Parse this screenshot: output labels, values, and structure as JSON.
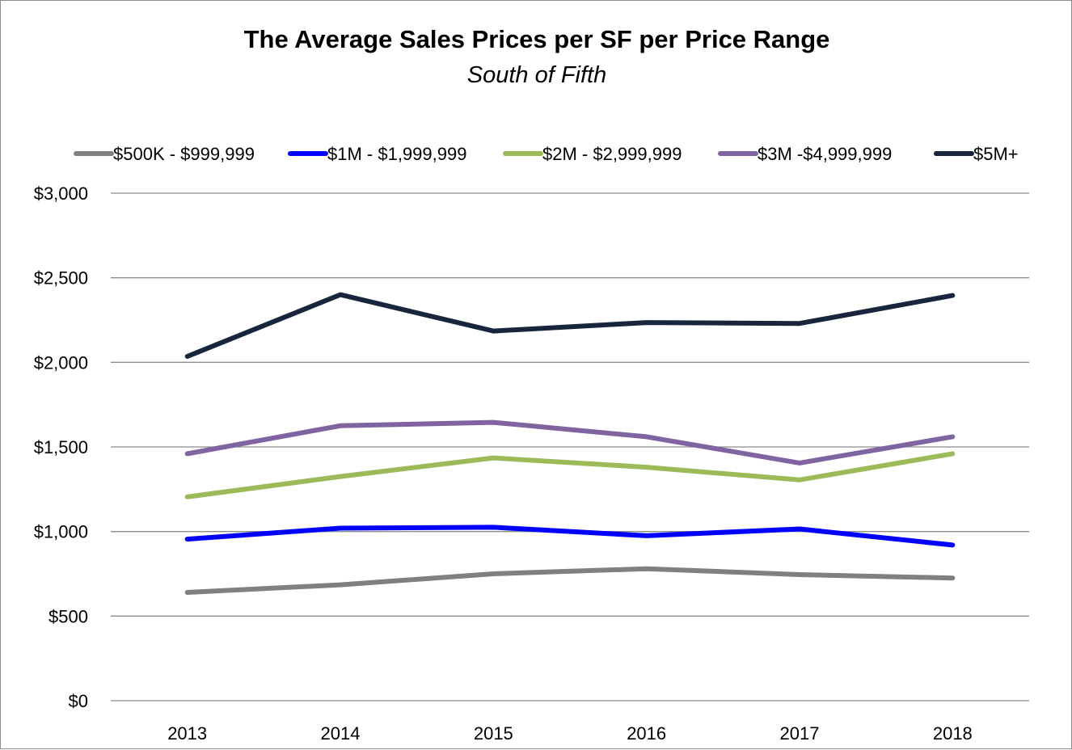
{
  "chart_data": {
    "type": "line",
    "title": "The Average Sales Prices per SF per Price Range",
    "subtitle": "South of Fifth",
    "categories": [
      "2013",
      "2014",
      "2015",
      "2016",
      "2017",
      "2018"
    ],
    "ylim": [
      0,
      3000
    ],
    "yticks": [
      0,
      500,
      1000,
      1500,
      2000,
      2500,
      3000
    ],
    "ytick_labels": [
      "$0",
      "$500",
      "$1,000",
      "$1,500",
      "$2,000",
      "$2,500",
      "$3,000"
    ],
    "grid": true,
    "legend_position": "top",
    "series": [
      {
        "name": "$500K - $999,999",
        "color": "#808080",
        "values": [
          640,
          685,
          750,
          780,
          745,
          725
        ]
      },
      {
        "name": "$1M - $1,999,999",
        "color": "#0000ff",
        "values": [
          955,
          1020,
          1025,
          975,
          1015,
          920
        ]
      },
      {
        "name": "$2M - $2,999,999",
        "color": "#9bbb59",
        "values": [
          1205,
          1325,
          1435,
          1380,
          1305,
          1460
        ]
      },
      {
        "name": "$3M -$4,999,999",
        "color": "#8064a2",
        "values": [
          1460,
          1625,
          1645,
          1560,
          1405,
          1560
        ]
      },
      {
        "name": "$5M+",
        "color": "#17263c",
        "values": [
          2035,
          2400,
          2185,
          2235,
          2230,
          2395
        ]
      }
    ]
  }
}
